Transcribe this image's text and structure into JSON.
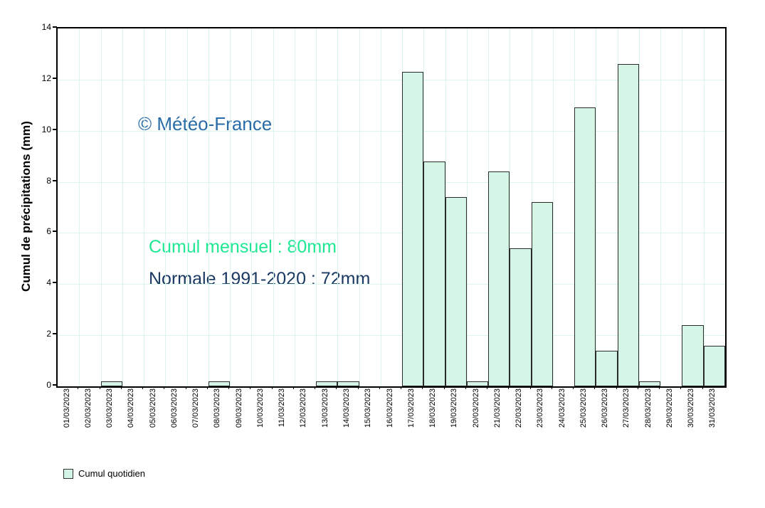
{
  "chart_data": {
    "type": "bar",
    "title": "",
    "xlabel": "",
    "ylabel": "Cumul de précipitations (mm)",
    "ylim": [
      0,
      14
    ],
    "y_ticks": [
      0,
      2,
      4,
      6,
      8,
      10,
      12,
      14
    ],
    "grid": true,
    "legend_position": "bottom-left",
    "categories": [
      "01/03/2023",
      "02/03/2023",
      "03/03/2023",
      "04/03/2023",
      "05/03/2023",
      "06/03/2023",
      "07/03/2023",
      "08/03/2023",
      "09/03/2023",
      "10/03/2023",
      "11/03/2023",
      "12/03/2023",
      "13/03/2023",
      "14/03/2023",
      "15/03/2023",
      "16/03/2023",
      "17/03/2023",
      "18/03/2023",
      "19/03/2023",
      "20/03/2023",
      "21/03/2023",
      "22/03/2023",
      "23/03/2023",
      "24/03/2023",
      "25/03/2023",
      "26/03/2023",
      "27/03/2023",
      "28/03/2023",
      "29/03/2023",
      "30/03/2023",
      "31/03/2023"
    ],
    "series": [
      {
        "name": "Cumul quotidien",
        "values": [
          0,
          0,
          0.2,
          0,
          0,
          0,
          0,
          0.2,
          0,
          0,
          0,
          0,
          0.2,
          0.2,
          0,
          0,
          12.3,
          8.8,
          7.4,
          0.2,
          8.4,
          5.4,
          7.2,
          0,
          10.9,
          1.4,
          12.6,
          0.2,
          0,
          2.4,
          1.6
        ]
      }
    ],
    "colors": {
      "bar_fill": "#d5f5e6",
      "bar_border": "#2b2b2b",
      "grid_color": "#d9f5ec",
      "axis_color": "#000000"
    }
  },
  "annotations": {
    "copyright": {
      "text": "© Météo-France",
      "color": "#2a6ca8"
    },
    "monthly_total": {
      "text": "Cumul mensuel : 80mm",
      "color": "#1fe894"
    },
    "normal": {
      "text": "Normale 1991-2020 : 72mm",
      "color": "#1b3a63"
    }
  },
  "legend": {
    "label": "Cumul quotidien",
    "swatch_color": "#d5f5e6"
  }
}
